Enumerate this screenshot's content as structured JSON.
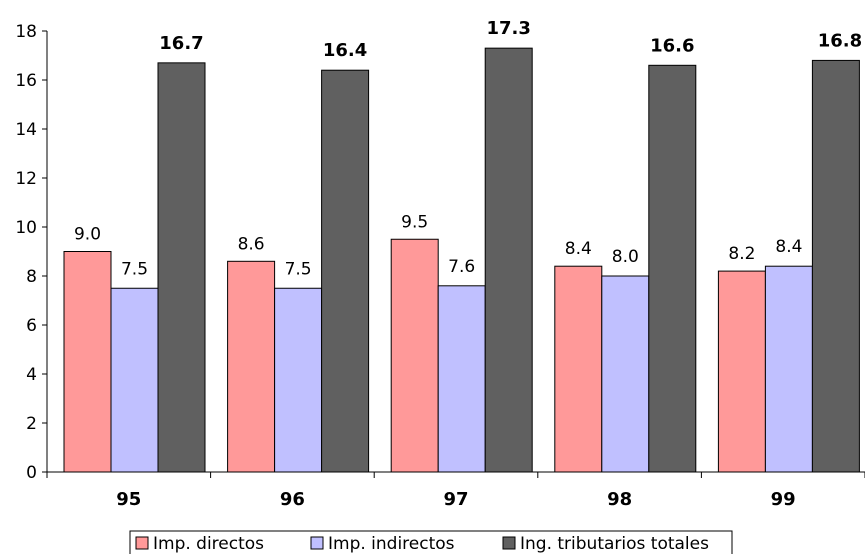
{
  "chart_data": {
    "type": "bar",
    "categories": [
      "95",
      "96",
      "97",
      "98",
      "99"
    ],
    "series": [
      {
        "name": "Imp. directos",
        "values": [
          9.0,
          8.6,
          9.5,
          8.4,
          8.2
        ],
        "color": "#ff9999",
        "label_style": "normal"
      },
      {
        "name": "Imp. indirectos",
        "values": [
          7.5,
          7.5,
          7.6,
          8.0,
          8.4
        ],
        "color": "#c0c0ff",
        "label_style": "normal"
      },
      {
        "name": "Ing. tributarios totales",
        "values": [
          16.7,
          16.4,
          17.3,
          16.6,
          16.8
        ],
        "color": "#606060",
        "label_style": "bold"
      }
    ],
    "yticks": [
      0,
      2,
      4,
      6,
      8,
      10,
      12,
      14,
      16,
      18
    ],
    "ylim": [
      0,
      18
    ],
    "grid": false,
    "legend_position": "bottom"
  }
}
